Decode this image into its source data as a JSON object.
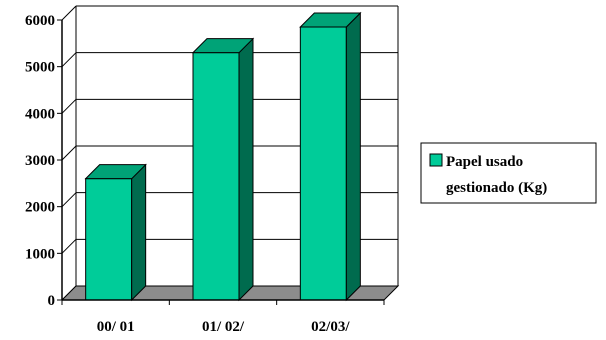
{
  "chart_data": {
    "type": "bar",
    "title": "",
    "xlabel": "",
    "ylabel": "",
    "categories": [
      "00/ 01",
      "01/ 02/",
      "02/03/"
    ],
    "series": [
      {
        "name": "Papel usado gestionado (Kg)",
        "values": [
          2600,
          5300,
          5850
        ]
      }
    ],
    "ylim": [
      0,
      6000
    ],
    "yticks": [
      "0",
      "1000",
      "2000",
      "3000",
      "4000",
      "5000",
      "6000"
    ],
    "grid": true,
    "legend_position": "right",
    "legend_lines": [
      "Papel usado",
      "gestionado (Kg)"
    ],
    "style": "3d"
  },
  "colors": {
    "bar_front": "#00cc99",
    "bar_side": "#006b4e",
    "bar_top": "#00a377",
    "floor": "#8c8c8c",
    "grid": "#000000"
  }
}
